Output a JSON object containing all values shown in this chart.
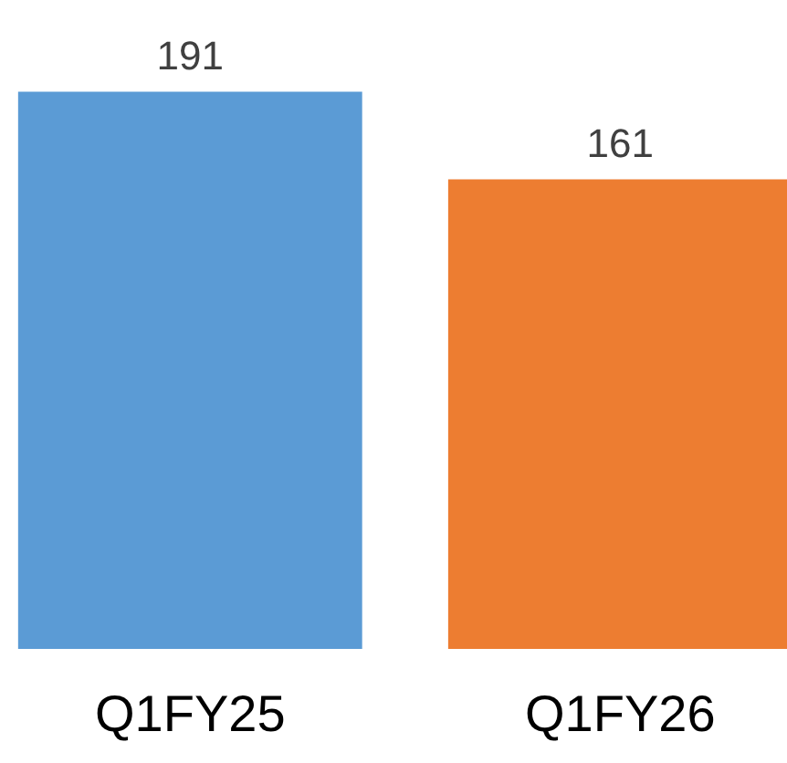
{
  "chart_data": {
    "type": "bar",
    "categories": [
      "Q1FY25",
      "Q1FY26"
    ],
    "values": [
      191,
      161
    ],
    "colors": [
      "#5b9bd5",
      "#ed7d31"
    ],
    "data_labels": true,
    "grid": false
  }
}
